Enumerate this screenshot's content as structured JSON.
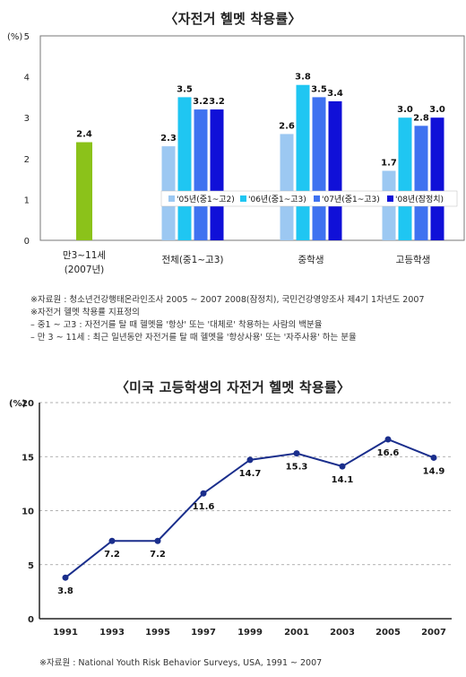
{
  "titles": {
    "chart1": "〈자전거 헬멧 착용률〉",
    "chart2": "〈미국 고등학생의 자전거 헬멧 착용률〉"
  },
  "notes1": [
    "※자료원 : 청소년건강행태온라인조사 2005 ~ 2007 2008(잠정치), 국민건강영양조사 제4기 1차년도 2007",
    "※자전거 헬멧 착용률 지표정의",
    " – 중1 ~ 고3 : 자전거를 탈 때 헬멧을 '항상' 또는 '대체로' 착용하는 사람의 백분율",
    " – 만 3 ~ 11세 : 최근 일년동안 자전거를 탈 때 헬멧을 '항상사용' 또는 '자주사용' 하는 분율"
  ],
  "source2": "※자료원 : National Youth Risk Behavior Surveys, USA, 1991 ~ 2007",
  "chart_data": [
    {
      "type": "bar",
      "title": "〈자전거 헬멧 착용률〉",
      "ylabel": "(%)",
      "ylim": [
        0,
        5
      ],
      "yticks": [
        0,
        1,
        2,
        3,
        4,
        5
      ],
      "categories": [
        "만3~11세\n(2007년)",
        "전체(중1~고3)",
        "중학생",
        "고등학생"
      ],
      "legend_position": "bottom-right inside plot",
      "series": [
        {
          "name": "'05년(중1~고2)",
          "color": "#9cc8f2",
          "values": [
            null,
            2.3,
            2.6,
            1.7
          ]
        },
        {
          "name": "'06년(중1~고3)",
          "color": "#1fc6f2",
          "values": [
            null,
            3.5,
            3.8,
            3.0
          ]
        },
        {
          "name": "'07년(중1~고3)",
          "color": "#3f72f0",
          "values": [
            null,
            3.2,
            3.5,
            2.8
          ]
        },
        {
          "name": "'08년(잠정치)",
          "color": "#1010d8",
          "values": [
            null,
            3.2,
            3.4,
            3.0
          ]
        },
        {
          "name": "",
          "color": "#8bc21a",
          "values": [
            2.4,
            null,
            null,
            null
          ]
        }
      ]
    },
    {
      "type": "line",
      "title": "〈미국 고등학생의 자전거 헬멧 착용률〉",
      "ylabel": "(%)",
      "ylim": [
        0,
        20
      ],
      "yticks": [
        0,
        5,
        10,
        15,
        20
      ],
      "grid": "dashed horizontal",
      "x": [
        "1991",
        "1993",
        "1995",
        "1997",
        "1999",
        "2001",
        "2003",
        "2005",
        "2007"
      ],
      "series": [
        {
          "color": "#1a2e8c",
          "values": [
            3.8,
            7.2,
            7.2,
            11.6,
            14.7,
            15.3,
            14.1,
            16.6,
            14.9
          ]
        }
      ]
    }
  ]
}
